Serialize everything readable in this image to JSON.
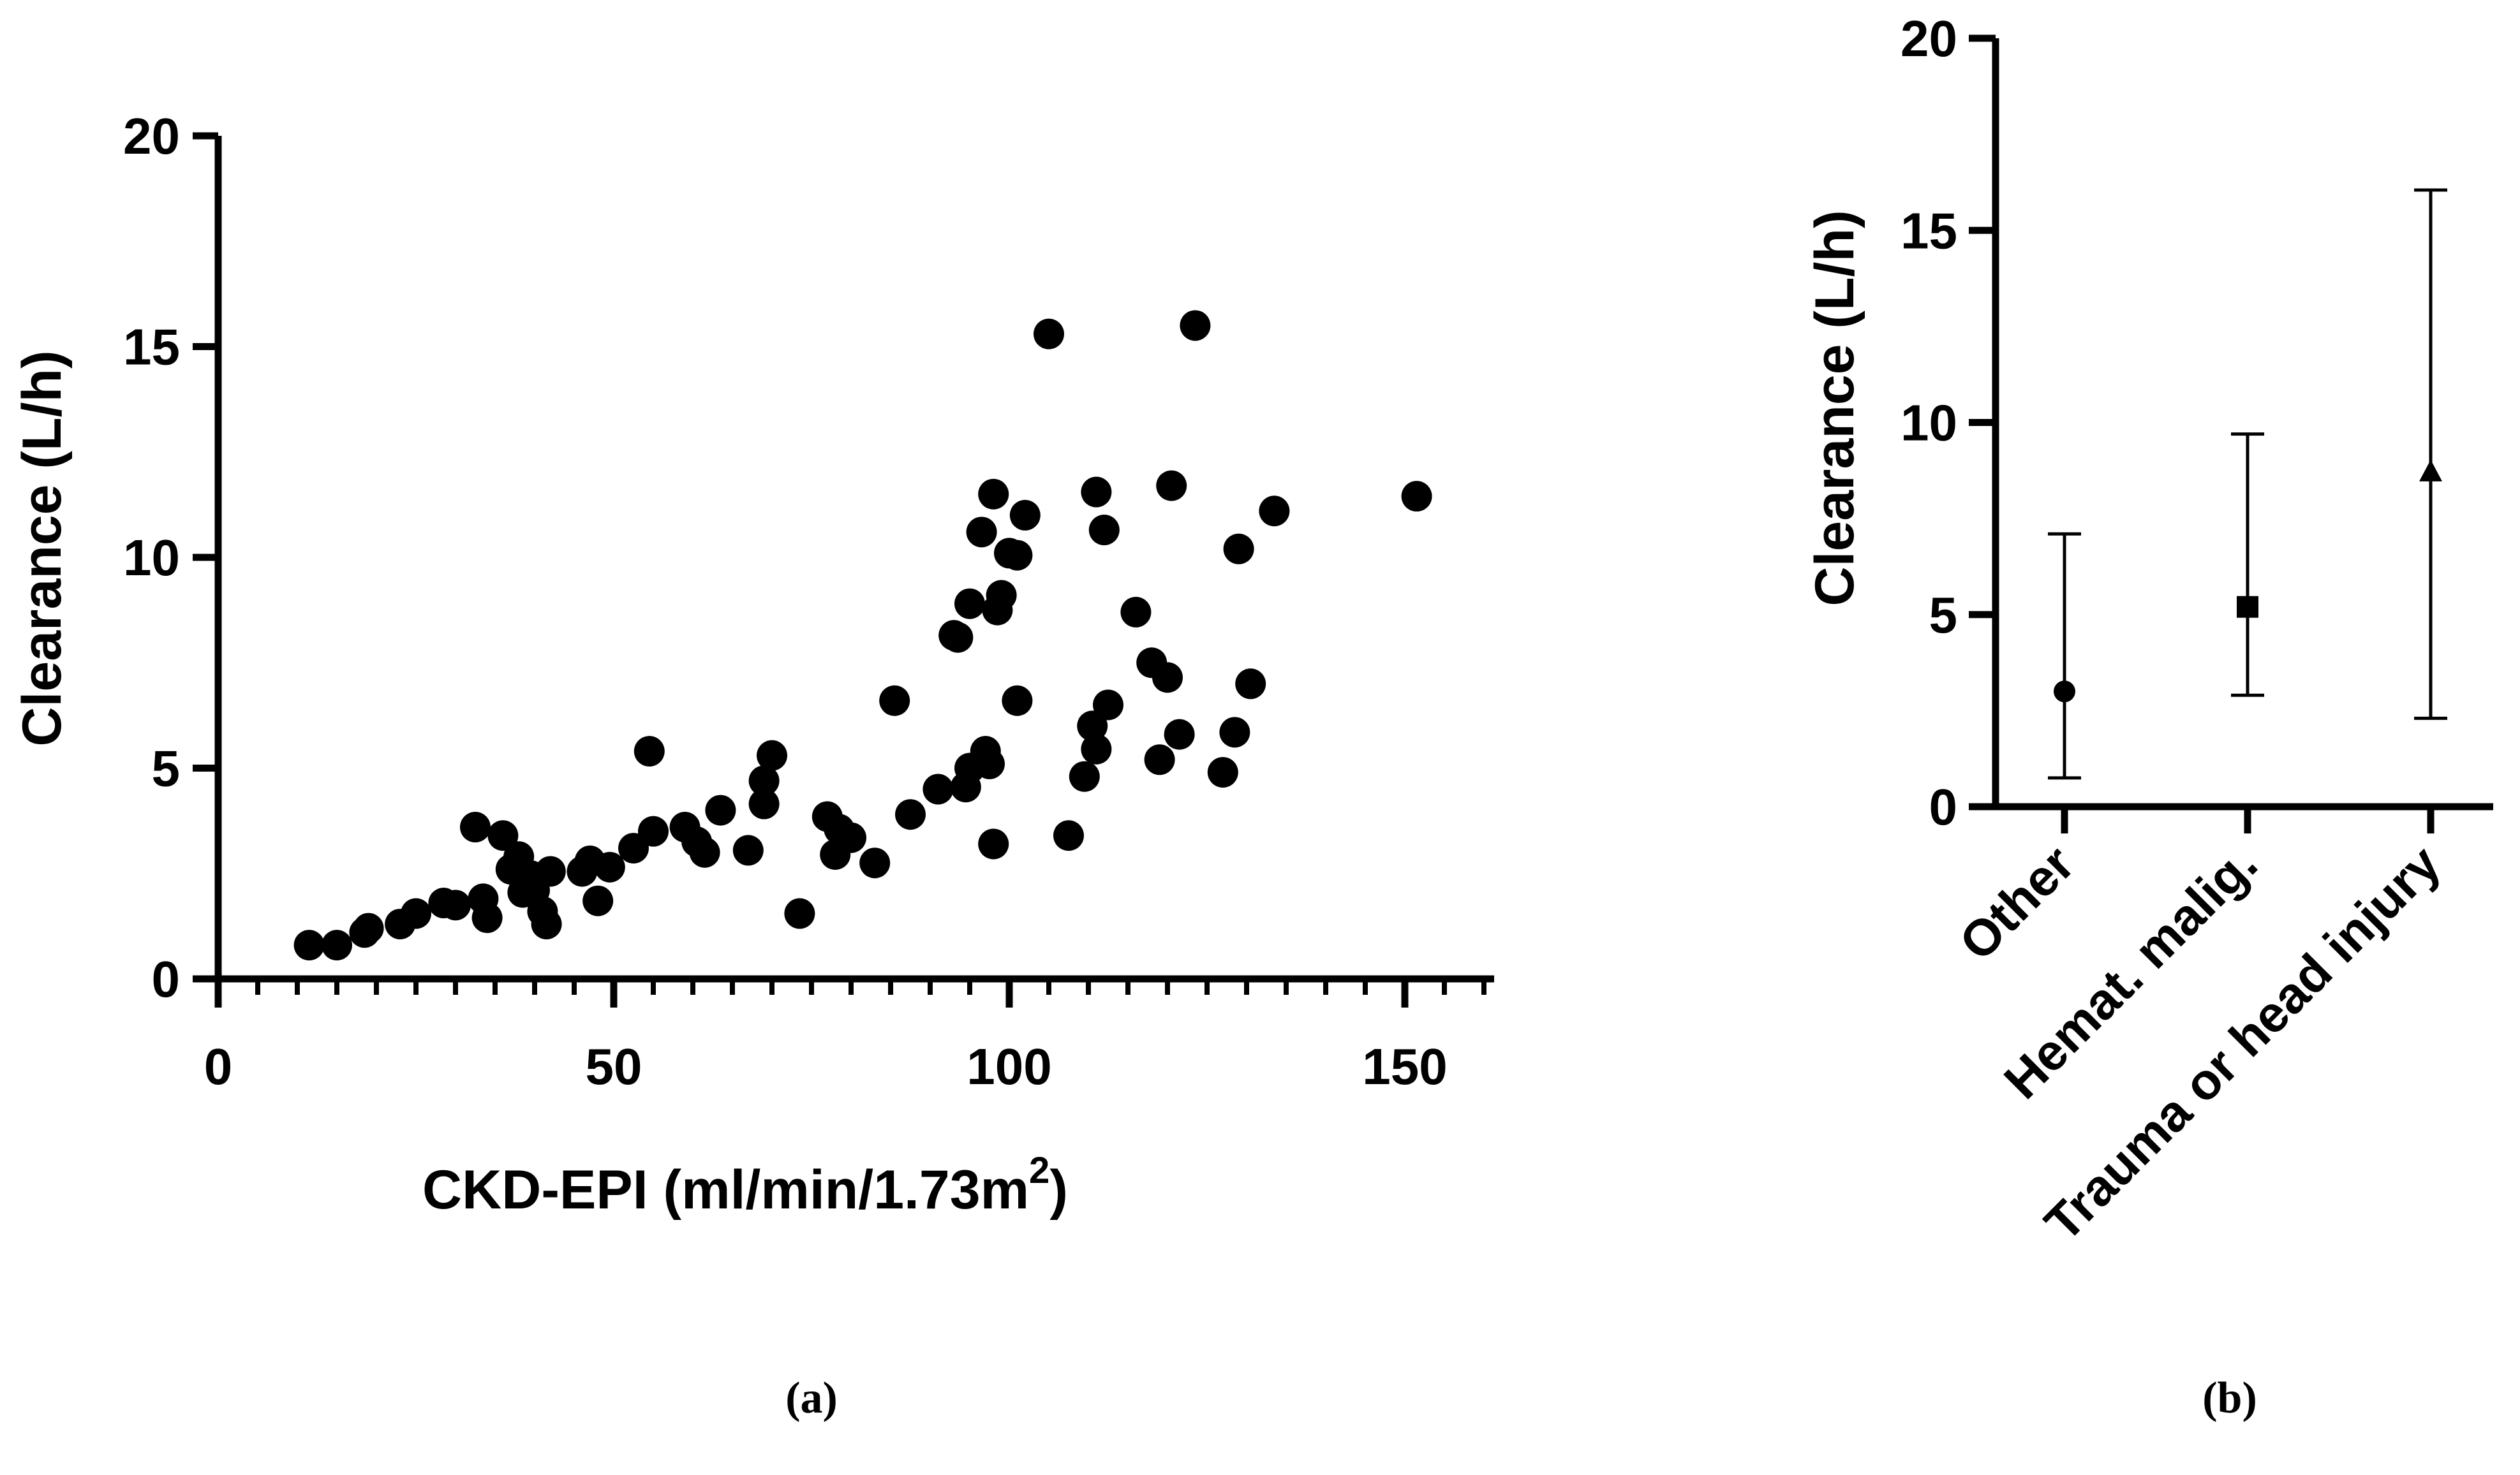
{
  "chart_data": [
    {
      "panel": "a",
      "type": "scatter",
      "title": "",
      "xlabel": "CKD-EPI (ml/min/1.73m",
      "xlabel_superscript": "2",
      "xlabel_suffix": ")",
      "ylabel": "Clearance (L/h)",
      "xlim": [
        0,
        160
      ],
      "ylim": [
        0,
        20
      ],
      "xticks": [
        0,
        50,
        100,
        150
      ],
      "yticks": [
        0,
        5,
        10,
        15,
        20
      ],
      "xtick_labels": [
        "0",
        "50",
        "100",
        "150"
      ],
      "ytick_labels": [
        "0",
        "5",
        "10",
        "15",
        "20"
      ],
      "grid": false,
      "caption": "(a)",
      "points": [
        [
          11.5,
          0.8
        ],
        [
          15,
          0.8
        ],
        [
          18.5,
          1.1
        ],
        [
          19,
          1.2
        ],
        [
          23,
          1.3
        ],
        [
          25,
          1.55
        ],
        [
          28.5,
          1.8
        ],
        [
          30,
          1.75
        ],
        [
          32.5,
          3.6
        ],
        [
          33.5,
          1.9
        ],
        [
          34,
          1.45
        ],
        [
          36,
          3.4
        ],
        [
          37,
          2.6
        ],
        [
          38,
          2.9
        ],
        [
          38.5,
          2.05
        ],
        [
          39.5,
          2.45
        ],
        [
          40,
          2.1
        ],
        [
          41,
          1.6
        ],
        [
          41.5,
          1.3
        ],
        [
          42,
          2.55
        ],
        [
          46,
          2.55
        ],
        [
          47,
          2.8
        ],
        [
          48,
          1.85
        ],
        [
          49.5,
          2.65
        ],
        [
          52.5,
          3.1
        ],
        [
          54.5,
          5.4
        ],
        [
          55,
          3.5
        ],
        [
          59,
          3.6
        ],
        [
          60.5,
          3.25
        ],
        [
          61.5,
          3.0
        ],
        [
          63.5,
          4.0
        ],
        [
          67,
          3.05
        ],
        [
          69,
          4.7
        ],
        [
          69,
          4.15
        ],
        [
          70,
          5.3
        ],
        [
          73.5,
          1.55
        ],
        [
          77,
          3.85
        ],
        [
          78,
          2.95
        ],
        [
          78.5,
          3.55
        ],
        [
          80,
          3.35
        ],
        [
          83,
          2.75
        ],
        [
          85.5,
          6.6
        ],
        [
          87.5,
          3.9
        ],
        [
          91,
          4.5
        ],
        [
          93,
          8.15
        ],
        [
          93.5,
          8.1
        ],
        [
          94.5,
          4.55
        ],
        [
          95,
          8.9
        ],
        [
          95,
          5.0
        ],
        [
          96.5,
          10.6
        ],
        [
          97,
          5.4
        ],
        [
          97.5,
          5.1
        ],
        [
          98,
          3.2
        ],
        [
          98,
          11.5
        ],
        [
          98.5,
          8.75
        ],
        [
          99,
          9.1
        ],
        [
          100,
          10.1
        ],
        [
          101,
          6.6
        ],
        [
          101,
          10.05
        ],
        [
          102,
          11.0
        ],
        [
          105,
          15.3
        ],
        [
          107.5,
          3.4
        ],
        [
          109.5,
          4.8
        ],
        [
          110.5,
          6.0
        ],
        [
          111,
          11.55
        ],
        [
          111,
          5.45
        ],
        [
          112,
          10.65
        ],
        [
          112.5,
          6.5
        ],
        [
          116,
          8.7
        ],
        [
          118,
          7.5
        ],
        [
          119,
          5.2
        ],
        [
          120,
          7.15
        ],
        [
          120.5,
          11.7
        ],
        [
          121.5,
          5.8
        ],
        [
          123.5,
          15.5
        ],
        [
          127,
          4.9
        ],
        [
          128.5,
          5.85
        ],
        [
          129,
          10.2
        ],
        [
          130.5,
          7.0
        ],
        [
          133.5,
          11.1
        ],
        [
          151.5,
          11.45
        ]
      ]
    },
    {
      "panel": "b",
      "type": "errorbar",
      "title": "",
      "xlabel": "",
      "ylabel": "Clearance (L/h)",
      "ylim": [
        0,
        20
      ],
      "yticks": [
        0,
        5,
        10,
        15,
        20
      ],
      "ytick_labels": [
        "0",
        "5",
        "10",
        "15",
        "20"
      ],
      "grid": false,
      "caption": "(b)",
      "categories": [
        "Other",
        "Hemat. malig.",
        "Trauma or head injury"
      ],
      "markers": [
        "circle",
        "square",
        "triangle"
      ],
      "values": [
        3.0,
        5.2,
        8.7
      ],
      "lower": [
        0.75,
        2.9,
        2.3
      ],
      "upper": [
        7.1,
        9.7,
        16.05
      ]
    }
  ]
}
